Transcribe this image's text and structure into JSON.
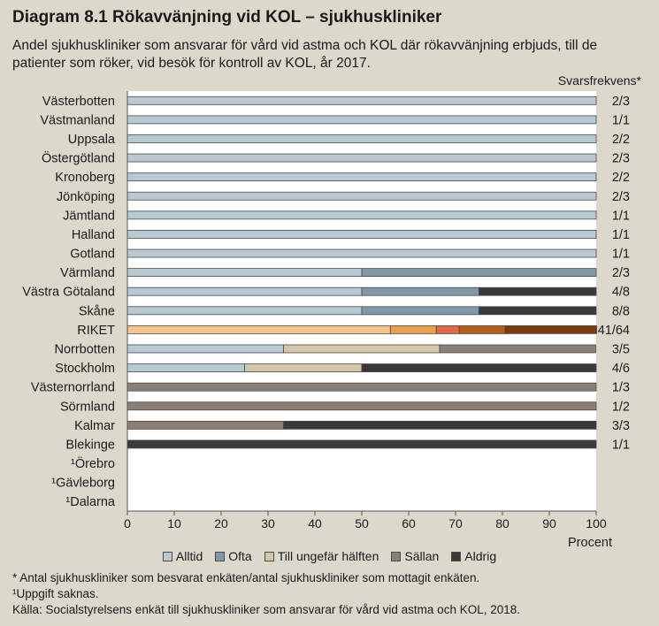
{
  "title": "Diagram 8.1 Rökavvänjning vid KOL – sjukhuskliniker",
  "subtitle": "Andel sjukhuskliniker som ansvarar för vård vid astma och KOL där rökavvänjning erbjuds, till de patienter som röker, vid besök för kontroll av KOL, år 2017.",
  "footnotes": {
    "note_star": "* Antal sjukhuskliniker som besvarat enkäten/antal sjukhuskliniker som mottagit enkäten.",
    "note_one": "¹Uppgift saknas.",
    "source": "Källa:  Socialstyrelsens enkät till sjukhuskliniker som ansvarar för vård vid astma och KOL, 2018."
  },
  "chart_data": {
    "type": "bar",
    "orientation": "horizontal",
    "stacked": true,
    "categories": [
      "Västerbotten",
      "Västmanland",
      "Uppsala",
      "Östergötland",
      "Kronoberg",
      "Jönköping",
      "Jämtland",
      "Halland",
      "Gotland",
      "Värmland",
      "Västra Götaland",
      "Skåne",
      "RIKET",
      "Norrbotten",
      "Stockholm",
      "Västernorrland",
      "Sörmland",
      "Kalmar",
      "Blekinge",
      "¹Örebro",
      "¹Gävleborg",
      "¹Dalarna"
    ],
    "response_header": "Svarsfrekvens*",
    "response_rates": [
      "2/3",
      "1/1",
      "2/2",
      "2/3",
      "2/2",
      "2/3",
      "1/1",
      "1/1",
      "1/1",
      "2/3",
      "4/8",
      "8/8",
      "41/64",
      "3/5",
      "4/6",
      "1/3",
      "1/2",
      "3/3",
      "1/1",
      "",
      "",
      ""
    ],
    "series": [
      {
        "name": "Alltid",
        "color": "#b8c9d4",
        "riket_color": "#f7c48a",
        "values": [
          100,
          100,
          100,
          100,
          100,
          100,
          100,
          100,
          100,
          50,
          50,
          50,
          56.1,
          33.3,
          25,
          0,
          0,
          0,
          0,
          null,
          null,
          null
        ]
      },
      {
        "name": "Ofta",
        "color": "#7f99a8",
        "riket_color": "#e8a24c",
        "values": [
          0,
          0,
          0,
          0,
          0,
          0,
          0,
          0,
          0,
          50,
          25,
          25,
          9.8,
          0,
          0,
          0,
          0,
          0,
          0,
          null,
          null,
          null
        ]
      },
      {
        "name": "Till ungefär hälften",
        "color": "#d4c6a8",
        "riket_color": "#e06a45",
        "values": [
          0,
          0,
          0,
          0,
          0,
          0,
          0,
          0,
          0,
          0,
          0,
          0,
          4.9,
          33.3,
          25,
          0,
          0,
          0,
          0,
          null,
          null,
          null
        ]
      },
      {
        "name": "Sällan",
        "color": "#8b7f75",
        "riket_color": "#b85c1a",
        "values": [
          0,
          0,
          0,
          0,
          0,
          0,
          0,
          0,
          0,
          0,
          0,
          0,
          9.8,
          33.3,
          0,
          100,
          100,
          33.3,
          0,
          null,
          null,
          null
        ]
      },
      {
        "name": "Aldrig",
        "color": "#3b3835",
        "riket_color": "#7a3c0a",
        "values": [
          0,
          0,
          0,
          0,
          0,
          0,
          0,
          0,
          0,
          0,
          25,
          25,
          19.5,
          0,
          50,
          0,
          0,
          66.7,
          100,
          null,
          null,
          null
        ]
      }
    ],
    "highlight_category": "RIKET",
    "xlim": [
      0,
      100
    ],
    "xticks": [
      0,
      10,
      20,
      30,
      40,
      50,
      60,
      70,
      80,
      90,
      100
    ],
    "xlabel": "Procent",
    "grid": false,
    "legend_position": "bottom"
  }
}
